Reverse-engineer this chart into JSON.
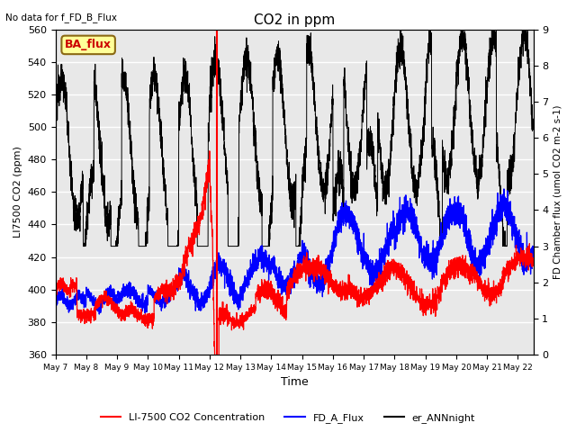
{
  "title": "CO2 in ppm",
  "top_left_text": "No data for f_FD_B_Flux",
  "ba_flux_label": "BA_flux",
  "xlabel": "Time",
  "ylabel_left": "LI7500 CO2 (ppm)",
  "ylabel_right": "FD Chamber flux (umol CO2 m-2 s-1)",
  "ylim_left": [
    360,
    560
  ],
  "ylim_right": [
    0.0,
    9.0
  ],
  "xlim_days": [
    0,
    15.5
  ],
  "x_tick_labels": [
    "May 7",
    "May 8",
    "May 9",
    "May 10",
    "May 11",
    "May 12",
    "May 13",
    "May 14",
    "May 15",
    "May 16",
    "May 17",
    "May 18",
    "May 19",
    "May 20",
    "May 21",
    "May 22"
  ],
  "vline_day": 5.25,
  "vline_color": "#ff0000",
  "legend_entries": [
    "LI-7500 CO2 Concentration",
    "FD_A_Flux",
    "er_ANNnight"
  ],
  "legend_colors": [
    "#ff0000",
    "#0000ff",
    "#000000"
  ],
  "plot_bg_color": "#e8e8e8",
  "fig_bg_color": "#ffffff",
  "ba_flux_bg": "#ffff99",
  "ba_flux_border": "#8b6914",
  "red_color": "#ff0000",
  "blue_color": "#0000ff",
  "black_color": "#000000"
}
